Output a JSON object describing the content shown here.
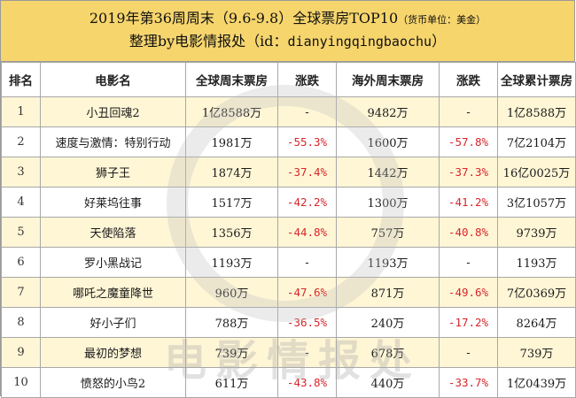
{
  "header": {
    "title": "2019年第36周周末（9.6-9.8）全球票房TOP10",
    "unit": "（货币单位：美金）",
    "subtitle_prefix": "整理by电影情报处（id：",
    "subtitle_id": "dianyingqingbaochu",
    "subtitle_suffix": "）"
  },
  "columns": [
    "排名",
    "电影名",
    "全球周末票房",
    "涨跌",
    "海外周末票房",
    "涨跌",
    "全球累计票房"
  ],
  "rows": [
    {
      "rank": "1",
      "title": "小丑回魂2",
      "global_weekend": "1亿8588万",
      "global_change": "-",
      "overseas_weekend": "9482万",
      "overseas_change": "-",
      "global_total": "1亿8588万"
    },
    {
      "rank": "2",
      "title": "速度与激情：特别行动",
      "global_weekend": "1981万",
      "global_change": "-55.3%",
      "overseas_weekend": "1600万",
      "overseas_change": "-57.8%",
      "global_total": "7亿2104万"
    },
    {
      "rank": "3",
      "title": "狮子王",
      "global_weekend": "1874万",
      "global_change": "-37.4%",
      "overseas_weekend": "1442万",
      "overseas_change": "-37.3%",
      "global_total": "16亿0025万"
    },
    {
      "rank": "4",
      "title": "好莱坞往事",
      "global_weekend": "1517万",
      "global_change": "-42.2%",
      "overseas_weekend": "1300万",
      "overseas_change": "-41.2%",
      "global_total": "3亿1057万"
    },
    {
      "rank": "5",
      "title": "天使陷落",
      "global_weekend": "1356万",
      "global_change": "-44.8%",
      "overseas_weekend": "757万",
      "overseas_change": "-40.8%",
      "global_total": "9739万"
    },
    {
      "rank": "6",
      "title": "罗小黑战记",
      "global_weekend": "1193万",
      "global_change": "-",
      "overseas_weekend": "1193万",
      "overseas_change": "-",
      "global_total": "1193万"
    },
    {
      "rank": "7",
      "title": "哪吒之魔童降世",
      "global_weekend": "960万",
      "global_change": "-47.6%",
      "overseas_weekend": "871万",
      "overseas_change": "-49.6%",
      "global_total": "7亿0369万"
    },
    {
      "rank": "8",
      "title": "好小子们",
      "global_weekend": "788万",
      "global_change": "-36.5%",
      "overseas_weekend": "240万",
      "overseas_change": "-17.2%",
      "global_total": "8264万"
    },
    {
      "rank": "9",
      "title": "最初的梦想",
      "global_weekend": "739万",
      "global_change": "-",
      "overseas_weekend": "678万",
      "overseas_change": "-",
      "global_total": "739万"
    },
    {
      "rank": "10",
      "title": "愤怒的小鸟2",
      "global_weekend": "611万",
      "global_change": "-43.8%",
      "overseas_weekend": "440万",
      "overseas_change": "-33.7%",
      "global_total": "1亿0439万"
    }
  ],
  "watermark_text": "电影情报处",
  "colors": {
    "header_bg": "#f6d56d",
    "odd_row_bg": "#fff6d6",
    "negative_change": "#d7262b"
  }
}
